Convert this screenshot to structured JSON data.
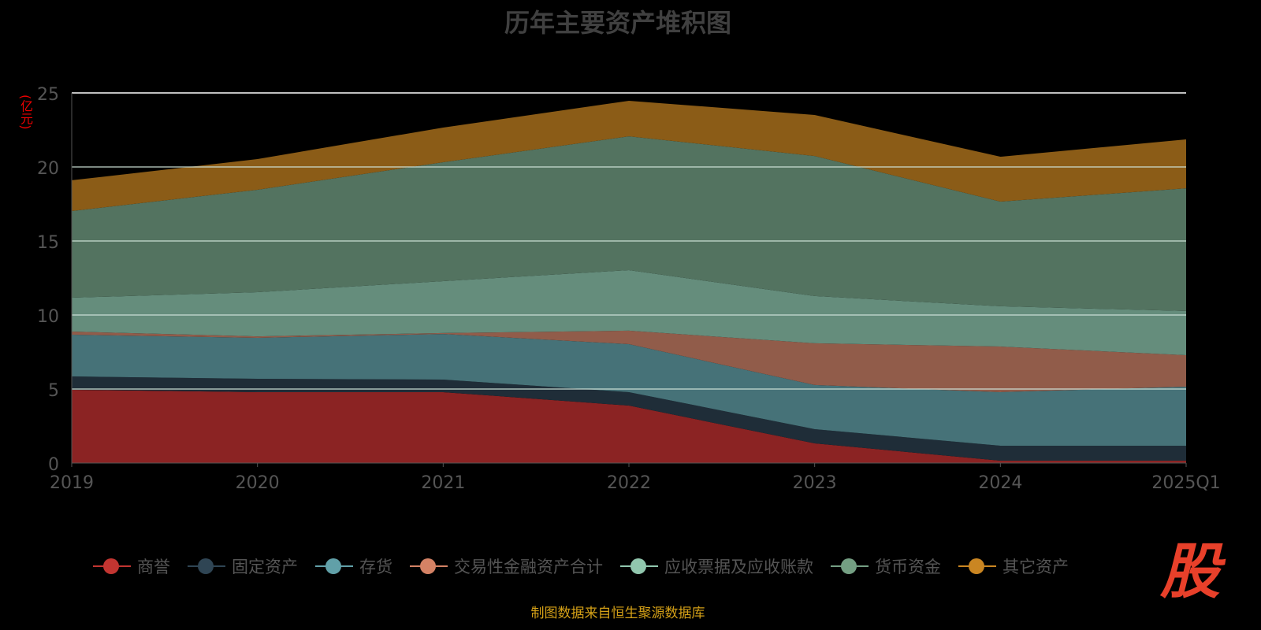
{
  "chart_data": {
    "type": "area",
    "stacked": true,
    "title": "历年主要资产堆积图",
    "ylabel": "(亿元)",
    "xlabel": "",
    "ylim": [
      0,
      25
    ],
    "yticks": [
      "0",
      "5",
      "10",
      "15",
      "20",
      "25"
    ],
    "categories": [
      "2019",
      "2020",
      "2021",
      "2022",
      "2023",
      "2024",
      "2025Q1"
    ],
    "legend_position": "bottom",
    "series": [
      {
        "name": "商誉",
        "color": "#c23531",
        "fill": "#8b2323",
        "values": [
          4.95,
          4.79,
          4.79,
          3.88,
          1.33,
          0.16,
          0.16
        ]
      },
      {
        "name": "固定资产",
        "color": "#2f4554",
        "fill": "#1f2d38",
        "values": [
          0.9,
          0.9,
          0.85,
          0.91,
          0.96,
          1.01,
          1.01
        ]
      },
      {
        "name": "存货",
        "color": "#61a0a8",
        "fill": "#467278",
        "values": [
          2.82,
          2.77,
          3.08,
          3.24,
          2.98,
          3.62,
          3.99
        ]
      },
      {
        "name": "交易性金融资产合计",
        "color": "#d48265",
        "fill": "#915c4a",
        "values": [
          0.21,
          0.1,
          0.06,
          0.91,
          2.82,
          3.08,
          2.13
        ]
      },
      {
        "name": "应收票据及应收账款",
        "color": "#91c7ae",
        "fill": "#658d7c",
        "values": [
          2.29,
          2.98,
          3.51,
          4.09,
          3.19,
          2.72,
          2.98
        ]
      },
      {
        "name": "货币资金",
        "color": "#749f83",
        "fill": "#537360",
        "values": [
          5.85,
          6.92,
          8.03,
          9.04,
          9.46,
          7.07,
          8.29
        ]
      },
      {
        "name": "其它资产",
        "color": "#ca8622",
        "fill": "#8b5c17",
        "values": [
          2.08,
          2.07,
          2.34,
          2.4,
          2.77,
          3.03,
          3.3
        ]
      }
    ]
  },
  "source": "制图数据来自恒生聚源数据库",
  "logo": "股"
}
